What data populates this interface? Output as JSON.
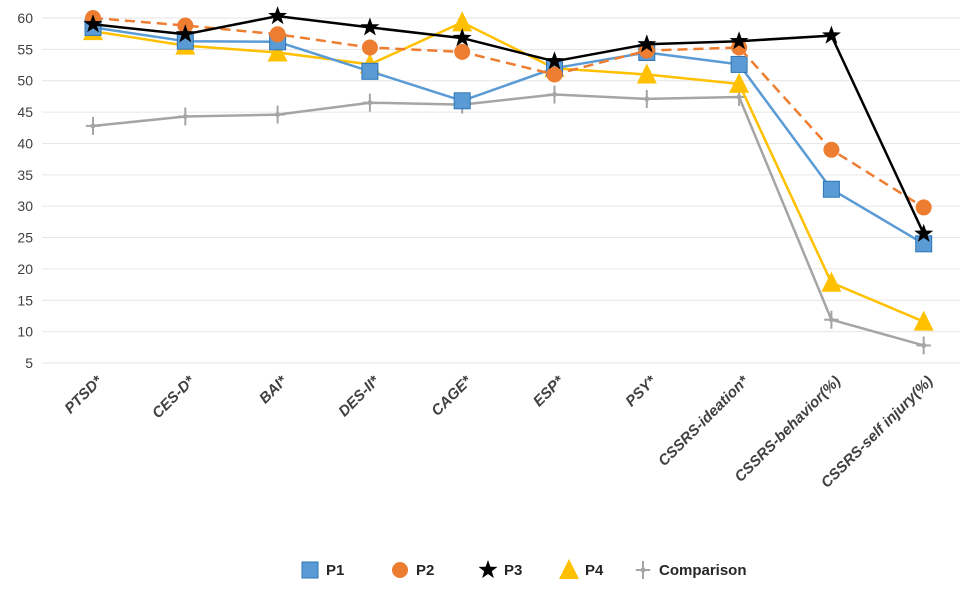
{
  "chart_data": {
    "type": "line",
    "title": "",
    "xlabel": "",
    "ylabel": "",
    "categories": [
      "PTSD*",
      "CES-D*",
      "BAI*",
      "DES-II*",
      "CAGE*",
      "ESP*",
      "PSY*",
      "CSSRS-ideation*",
      "CSSRS-behavior(%)",
      "CSSRS-self injury(%)"
    ],
    "ylim": [
      5,
      60
    ],
    "yticks": [
      5,
      10,
      15,
      20,
      25,
      30,
      35,
      40,
      45,
      50,
      55,
      60
    ],
    "ytick_labels": [
      "5",
      "10",
      "15",
      "20",
      "25",
      "30",
      "35",
      "40",
      "45",
      "50",
      "55",
      "60"
    ],
    "grid": true,
    "legend_position": "bottom",
    "series": [
      {
        "name": "P1",
        "values": [
          58.5,
          56.3,
          56.2,
          51.5,
          46.8,
          52.0,
          54.5,
          52.6,
          32.7,
          24.0
        ],
        "color": "#5B9BD5",
        "marker": "square",
        "dash": false
      },
      {
        "name": "P2",
        "values": [
          60.0,
          58.8,
          57.4,
          55.3,
          54.6,
          51.0,
          54.8,
          55.3,
          39.0,
          29.8
        ],
        "color": "#ED7D31",
        "marker": "circle",
        "dash": true
      },
      {
        "name": "P3",
        "values": [
          59.0,
          57.4,
          60.3,
          58.5,
          56.8,
          53.1,
          55.8,
          56.3,
          57.2,
          25.6
        ],
        "color": "#000000",
        "marker": "star",
        "dash": false
      },
      {
        "name": "P4",
        "values": [
          57.9,
          55.6,
          54.5,
          52.6,
          59.3,
          52.0,
          51.0,
          49.5,
          17.8,
          11.6
        ],
        "color": "#FFC000",
        "marker": "triangle",
        "dash": false
      },
      {
        "name": "Comparison",
        "values": [
          42.8,
          44.3,
          44.6,
          46.5,
          46.2,
          47.8,
          47.1,
          47.4,
          11.9,
          7.8
        ],
        "color": "#A5A5A5",
        "marker": "cross",
        "dash": false
      }
    ]
  }
}
